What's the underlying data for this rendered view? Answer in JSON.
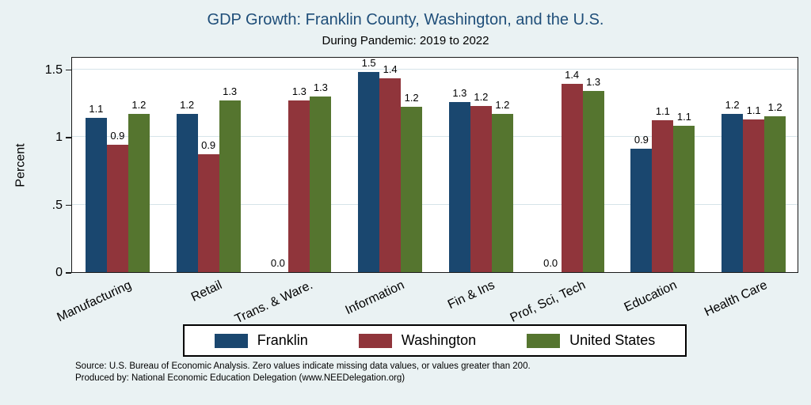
{
  "chart_data": {
    "type": "bar",
    "title": "GDP Growth: Franklin County, Washington, and the U.S.",
    "subtitle": "During Pandemic: 2019 to 2022",
    "ylabel": "Percent",
    "ylim": [
      0,
      1.6
    ],
    "yticks": [
      {
        "value": 0,
        "label": "0"
      },
      {
        "value": 0.5,
        "label": ".5"
      },
      {
        "value": 1,
        "label": "1"
      },
      {
        "value": 1.5,
        "label": "1.5"
      }
    ],
    "grid": true,
    "legend_position": "bottom",
    "categories": [
      "Manufacturing",
      "Retail",
      "Trans. & Ware.",
      "Information",
      "Fin & Ins",
      "Prof, Sci, Tech",
      "Education",
      "Health Care"
    ],
    "series": [
      {
        "name": "Franklin",
        "color": "#1a476f",
        "values": [
          1.14,
          1.17,
          0,
          1.48,
          1.26,
          0,
          0.91,
          1.17
        ],
        "labels": [
          "1.1",
          "1.2",
          "0.0",
          "1.5",
          "1.3",
          "0.0",
          "0.9",
          "1.2"
        ]
      },
      {
        "name": "Washington",
        "color": "#90353b",
        "values": [
          0.94,
          0.87,
          1.27,
          1.43,
          1.23,
          1.39,
          1.12,
          1.13
        ],
        "labels": [
          "0.9",
          "0.9",
          "1.3",
          "1.4",
          "1.2",
          "1.4",
          "1.1",
          "1.1"
        ]
      },
      {
        "name": "United States",
        "color": "#55752f",
        "values": [
          1.17,
          1.27,
          1.3,
          1.22,
          1.17,
          1.34,
          1.08,
          1.15
        ],
        "labels": [
          "1.2",
          "1.3",
          "1.3",
          "1.2",
          "1.2",
          "1.3",
          "1.1",
          "1.2"
        ]
      }
    ],
    "notes": [
      "Source: U.S. Bureau of Economic Analysis. Zero values indicate missing data values, or values greater than 200.",
      "Produced by: National Economic Education Delegation (www.NEEDelegation.org)"
    ]
  },
  "colors": {
    "background": "#eaf2f3",
    "plot_background": "#ffffff",
    "title_text": "#1f4e79",
    "gridline": "#d6e4e9",
    "axis": "#1a1a1a"
  }
}
